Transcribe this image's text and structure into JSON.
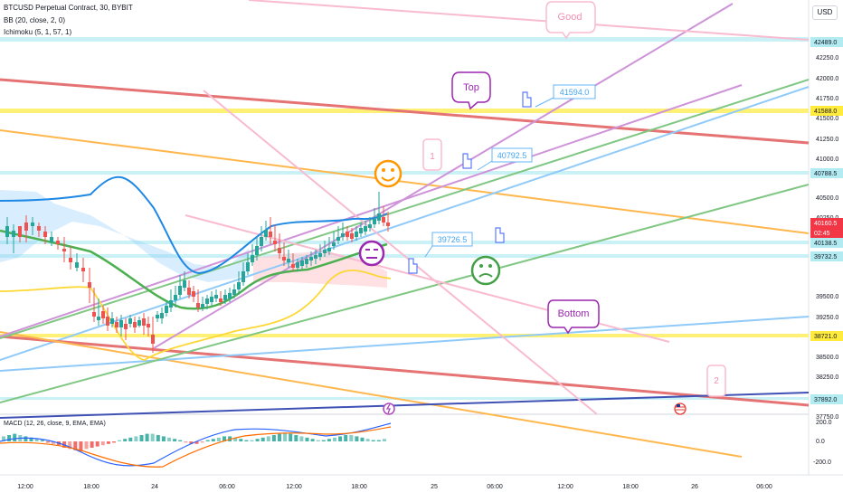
{
  "header": {
    "symbol_line": "BTCUSD Perpetual Contract, 30, BYBIT",
    "bb_line": "BB (20, close, 2, 0)",
    "ichimoku_line": "Ichimoku (5, 1, 57, 1)",
    "currency_button": "USD"
  },
  "price_axis": {
    "ticks": [
      "42250.0",
      "42000.0",
      "41750.0",
      "41500.0",
      "41250.0",
      "41000.0",
      "40500.0",
      "40250.0",
      "39500.0",
      "39250.0",
      "39000.0",
      "38500.0",
      "38250.0",
      "38000.0",
      "37750.0"
    ],
    "tags": [
      {
        "value": "42489.0",
        "style": "cyan"
      },
      {
        "value": "41588.0",
        "style": "yellow"
      },
      {
        "value": "40788.5",
        "style": "cyan"
      },
      {
        "value": "40160.5",
        "style": "red"
      },
      {
        "value": "02:45",
        "style": "red"
      },
      {
        "value": "40138.5",
        "style": "cyan"
      },
      {
        "value": "39732.5",
        "style": "cyan"
      },
      {
        "value": "38721.0",
        "style": "yellow"
      },
      {
        "value": "37892.0",
        "style": "cyan"
      }
    ]
  },
  "time_axis": {
    "labels": [
      "12:00",
      "18:00",
      "24",
      "06:00",
      "12:00",
      "18:00",
      "25",
      "06:00",
      "12:00",
      "18:00",
      "26",
      "06:00"
    ]
  },
  "annotations": {
    "good": "Good",
    "top": "Top",
    "bottom": "Bottom",
    "label_1": "1",
    "label_2": "2",
    "price_41594": "41594.0",
    "price_40792": "40792.5",
    "price_39726": "39726.5"
  },
  "macd": {
    "title": "MACD (12, 26, close, 9, EMA, EMA)",
    "ticks": [
      "200.0",
      "0.0",
      "-200.0"
    ]
  },
  "colors": {
    "up_candle": "#26a69a",
    "down_candle": "#ef5350",
    "bb_line": "#2196f3",
    "kijun": "#4caf50",
    "span": "#ffeb3b",
    "cloud": "#90caf9",
    "price_tag": "#f23645"
  }
}
